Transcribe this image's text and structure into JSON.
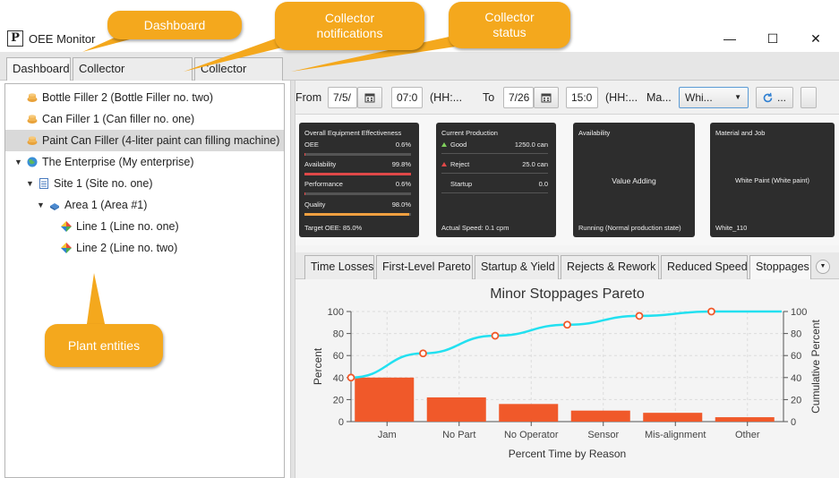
{
  "window": {
    "title": "OEE Monitor",
    "icon_text": "P",
    "minimize_label": "—",
    "maximize_label": "☐",
    "close_label": "✕"
  },
  "main_tabs": [
    {
      "label": "Dashboard",
      "active": true
    },
    {
      "label": "Collector Notifications",
      "active": false
    },
    {
      "label": "Collector Status",
      "active": false
    }
  ],
  "callouts": {
    "dashboard": "Dashboard",
    "notifications": "Collector notifications",
    "status": "Collector status",
    "plant_entities": "Plant entities"
  },
  "tree": [
    {
      "label": "Bottle Filler 2 (Bottle Filler no. two)",
      "icon": "equipment-icon",
      "selected": false
    },
    {
      "label": "Can Filler 1 (Can filler no. one)",
      "icon": "equipment-icon",
      "selected": false
    },
    {
      "label": "Paint Can Filler (4-liter paint can filling machine)",
      "icon": "equipment-icon",
      "selected": true
    },
    {
      "label": "The Enterprise (My enterprise)",
      "icon": "globe-icon",
      "selected": false
    },
    {
      "label": "Site 1 (Site no. one)",
      "icon": "site-icon",
      "selected": false
    },
    {
      "label": "Area 1 (Area #1)",
      "icon": "area-icon",
      "selected": false
    },
    {
      "label": "Line 1 (Line no. one)",
      "icon": "line-icon",
      "selected": false
    },
    {
      "label": "Line 2 (Line no. two)",
      "icon": "line-icon",
      "selected": false
    }
  ],
  "toolbar": {
    "from_label": "From",
    "from_date": "7/5/",
    "from_time": "07:0",
    "time_hint_1": "(HH:...",
    "to_label": "To",
    "to_date": "7/26",
    "to_time": "15:0",
    "time_hint_2": "(HH:...",
    "material_label": "Ma...",
    "material_value": "Whi...",
    "refresh_label": "...",
    "calendar_icon": "calendar-icon",
    "refresh_icon": "refresh-icon"
  },
  "cards": {
    "oee": {
      "title": "Overall Equipment Effectiveness",
      "rows": [
        {
          "label": "OEE",
          "value": "0.6%",
          "fraction": 0.006
        },
        {
          "label": "Availability",
          "value": "99.8%",
          "fraction": 0.998
        },
        {
          "label": "Performance",
          "value": "0.6%",
          "fraction": 0.006
        },
        {
          "label": "Quality",
          "value": "98.0%",
          "fraction": 0.98
        }
      ],
      "footer": "Target OEE: 85.0%"
    },
    "production": {
      "title": "Current Production",
      "rows": [
        {
          "label": "Good",
          "value": "1250.0 can"
        },
        {
          "label": "Reject",
          "value": "25.0 can"
        },
        {
          "label": "Startup",
          "value": "0.0"
        }
      ],
      "footer": "Actual Speed: 0.1 cpm"
    },
    "availability": {
      "title": "Availability",
      "center": "Value Adding",
      "footer": "Running (Normal production state)"
    },
    "material": {
      "title": "Material and Job",
      "center": "White Paint (White paint)",
      "footer": "White_110"
    }
  },
  "sub_tabs": [
    {
      "label": "Time Losses",
      "active": false
    },
    {
      "label": "First-Level Pareto",
      "active": false
    },
    {
      "label": "Startup & Yield",
      "active": false
    },
    {
      "label": "Rejects & Rework",
      "active": false
    },
    {
      "label": "Reduced Speed",
      "active": false
    },
    {
      "label": "Stoppages",
      "active": true
    }
  ],
  "tab_menu_label": "▼",
  "colors": {
    "bar": "#f0592a",
    "line": "#22e0f0",
    "marker": "#f0592a",
    "availability_bar": "#e04848",
    "quality_bar": "#f0a040",
    "callout": "#f4a81d"
  },
  "chart_data": {
    "type": "bar",
    "title": "Minor Stoppages Pareto",
    "xlabel": "Percent Time by Reason",
    "ylabel": "Percent",
    "y2label": "Cumulative Percent",
    "categories": [
      "Jam",
      "No Part",
      "No Operator",
      "Sensor",
      "Mis-alignment",
      "Other"
    ],
    "series": [
      {
        "name": "Percent",
        "type": "bar",
        "values": [
          40,
          22,
          16,
          10,
          8,
          4
        ]
      },
      {
        "name": "Cumulative Percent",
        "type": "line",
        "values": [
          40,
          62,
          78,
          88,
          96,
          100
        ]
      }
    ],
    "ylim": [
      0,
      100
    ],
    "y2lim": [
      0,
      100
    ],
    "yticks": [
      0,
      20,
      40,
      60,
      80,
      100
    ],
    "grid": true
  }
}
